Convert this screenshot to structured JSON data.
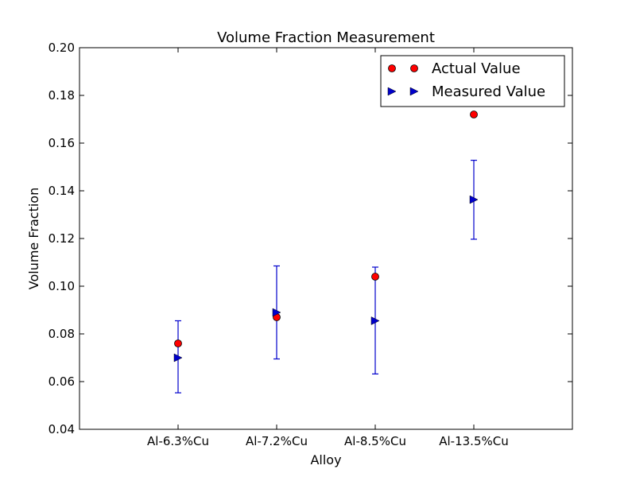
{
  "chart_data": {
    "type": "scatter",
    "title": "Volume Fraction Measurement",
    "xlabel": "Alloy",
    "ylabel": "Volume Fraction",
    "categories": [
      "Al-6.3%Cu",
      "Al-7.2%Cu",
      "Al-8.5%Cu",
      "Al-13.5%Cu"
    ],
    "ylim": [
      0.04,
      0.2
    ],
    "yticks": [
      "0.04",
      "0.06",
      "0.08",
      "0.10",
      "0.12",
      "0.14",
      "0.16",
      "0.18",
      "0.20"
    ],
    "legend_position": "top-right",
    "grid": false,
    "series": [
      {
        "name": "Actual Value",
        "marker": "circle",
        "color": "#ff0000",
        "values": [
          0.076,
          0.087,
          0.104,
          0.172
        ]
      },
      {
        "name": "Measured Value",
        "marker": "triangle-right",
        "color": "#0000cc",
        "values": [
          0.07,
          0.089,
          0.0855,
          0.1363
        ],
        "error_low": [
          0.0553,
          0.0695,
          0.0632,
          0.1197
        ],
        "error_high": [
          0.0855,
          0.1085,
          0.108,
          0.1528
        ]
      }
    ]
  }
}
